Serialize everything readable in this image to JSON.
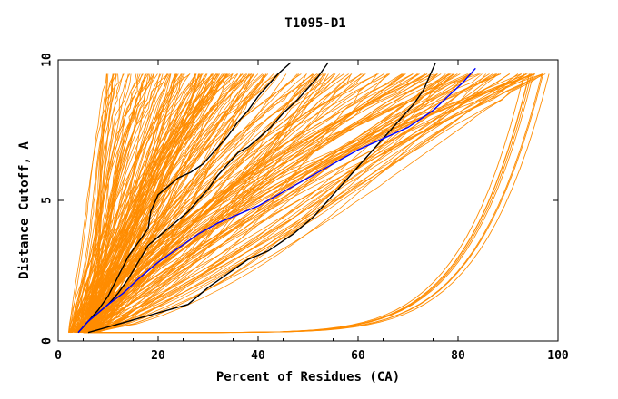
{
  "chart_data": {
    "type": "line",
    "title": "T1095-D1",
    "xlabel": "Percent of Residues (CA)",
    "ylabel": "Distance Cutoff, A",
    "xlim": [
      0,
      100
    ],
    "ylim": [
      0,
      10
    ],
    "x_ticks": [
      "0",
      "20",
      "40",
      "60",
      "80",
      "100"
    ],
    "y_ticks": [
      "0",
      "5",
      "10"
    ],
    "grid": false,
    "legend": "none",
    "colors": {
      "background_models": "#ff8c00",
      "highlight_black": "#000000",
      "highlight_blue": "#0000ff",
      "axes": "#000000"
    },
    "series": [
      {
        "color": "#000000",
        "x": [
          4.0,
          6.0,
          8.0,
          10.0,
          12.0,
          14.0,
          16.0,
          18.0,
          18.5,
          20.0,
          22.0,
          24.0,
          26.5,
          29.0,
          31.5,
          34.0,
          36.0,
          38.0,
          40.0,
          42.0,
          44.0,
          46.5
        ],
        "y": [
          0.3,
          0.7,
          1.1,
          1.6,
          2.3,
          3.0,
          3.5,
          4.0,
          4.6,
          5.2,
          5.5,
          5.8,
          6.0,
          6.3,
          6.8,
          7.3,
          7.8,
          8.2,
          8.7,
          9.1,
          9.5,
          9.9
        ]
      },
      {
        "color": "#000000",
        "x": [
          4.0,
          6.0,
          8.0,
          10.0,
          12.0,
          14.0,
          16.0,
          18.0,
          20.0,
          22.0,
          24.0,
          26.0,
          28.0,
          30.0,
          32.0,
          34.0,
          36.0,
          38.0,
          40.0,
          42.5,
          45.0,
          48.0,
          50.0,
          52.0,
          54.0
        ],
        "y": [
          0.3,
          0.7,
          1.0,
          1.3,
          1.7,
          2.2,
          2.8,
          3.4,
          3.7,
          4.0,
          4.3,
          4.6,
          5.0,
          5.4,
          5.9,
          6.3,
          6.7,
          6.9,
          7.2,
          7.6,
          8.1,
          8.6,
          9.0,
          9.4,
          9.9
        ]
      },
      {
        "color": "#000000",
        "x": [
          6.0,
          10.0,
          15.0,
          20.0,
          26.0,
          30.0,
          34.0,
          38.0,
          42.0,
          47.0,
          51.0,
          55.0,
          59.0,
          63.0,
          67.0,
          69.0,
          71.0,
          73.0,
          74.0,
          75.5
        ],
        "y": [
          0.3,
          0.5,
          0.75,
          1.0,
          1.3,
          1.9,
          2.4,
          2.9,
          3.2,
          3.8,
          4.4,
          5.2,
          6.0,
          6.8,
          7.6,
          8.0,
          8.4,
          8.9,
          9.3,
          9.9
        ]
      },
      {
        "color": "#0000ff",
        "x": [
          4.0,
          6.0,
          8.0,
          10.0,
          13.0,
          16.0,
          20.0,
          24.0,
          28.0,
          32.0,
          36.0,
          40.0,
          45.0,
          50.0,
          55.0,
          60.0,
          65.0,
          70.0,
          75.0,
          78.0,
          81.0,
          83.5
        ],
        "y": [
          0.3,
          0.7,
          1.0,
          1.3,
          1.7,
          2.2,
          2.8,
          3.3,
          3.8,
          4.2,
          4.5,
          4.8,
          5.3,
          5.8,
          6.3,
          6.8,
          7.2,
          7.6,
          8.2,
          8.7,
          9.2,
          9.7
        ]
      }
    ]
  }
}
